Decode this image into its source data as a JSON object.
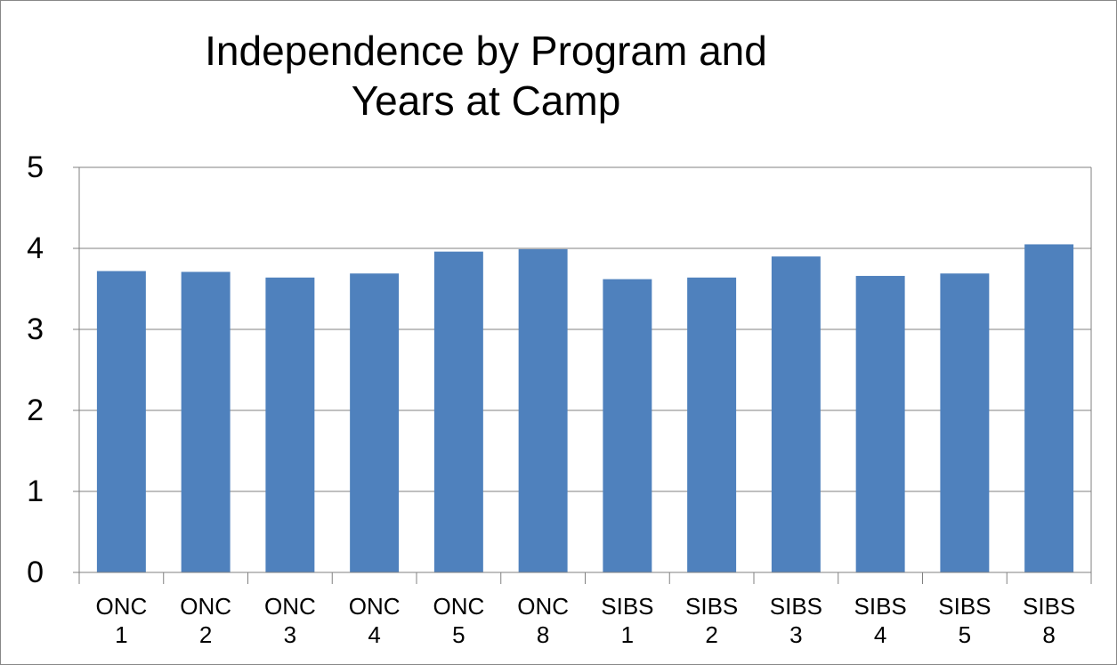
{
  "chart_data": {
    "type": "bar",
    "title": "Independence by Program and Years at Camp",
    "categories": [
      "ONC 1",
      "ONC 2",
      "ONC 3",
      "ONC 4",
      "ONC 5",
      "ONC 8",
      "SIBS 1",
      "SIBS 2",
      "SIBS 3",
      "SIBS 4",
      "SIBS 5",
      "SIBS 8"
    ],
    "values": [
      3.72,
      3.71,
      3.64,
      3.69,
      3.96,
      3.99,
      3.62,
      3.64,
      3.9,
      3.66,
      3.69,
      4.05
    ],
    "color": "#4f81bd",
    "ylim": [
      0,
      5
    ],
    "yticks": [
      0,
      1,
      2,
      3,
      4,
      5
    ],
    "grid": true
  }
}
